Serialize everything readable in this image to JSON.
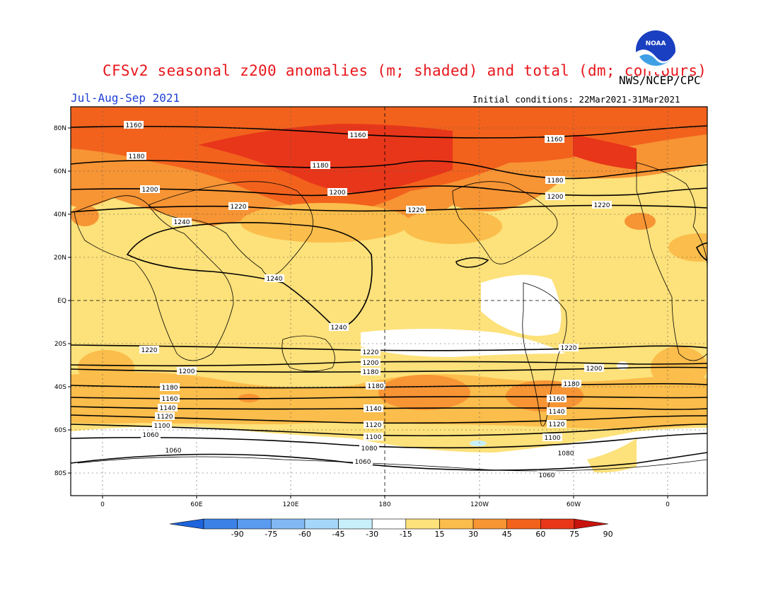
{
  "title": "CFSv2 seasonal z200 anomalies (m; shaded) and total (dm; contours)",
  "agency": "NWS/NCEP/CPC",
  "season": "Jul-Aug-Sep 2021",
  "initial_conditions": "Initial conditions: 22Mar2021-31Mar2021",
  "logo_text": "NOAA",
  "lat_labels": [
    "80N",
    "60N",
    "40N",
    "20N",
    "EQ",
    "20S",
    "40S",
    "60S",
    "80S"
  ],
  "lon_labels": [
    "0",
    "60E",
    "120E",
    "180",
    "120W",
    "60W",
    "0"
  ],
  "colorbar": {
    "labels": [
      "-90",
      "-75",
      "-60",
      "-45",
      "-30",
      "-15",
      "15",
      "30",
      "45",
      "60",
      "75",
      "90"
    ],
    "colors": [
      "#1e64dc",
      "#3c82e6",
      "#5a9bf0",
      "#82b9f5",
      "#a5d7fa",
      "#c8f0fa",
      "#ffffff",
      "#fde17a",
      "#fbbd4b",
      "#f79434",
      "#f2621d",
      "#e8361a",
      "#c8140f"
    ]
  },
  "contour_levels_dm": [
    "1060",
    "1080",
    "1100",
    "1120",
    "1140",
    "1160",
    "1180",
    "1200",
    "1220",
    "1240"
  ]
}
